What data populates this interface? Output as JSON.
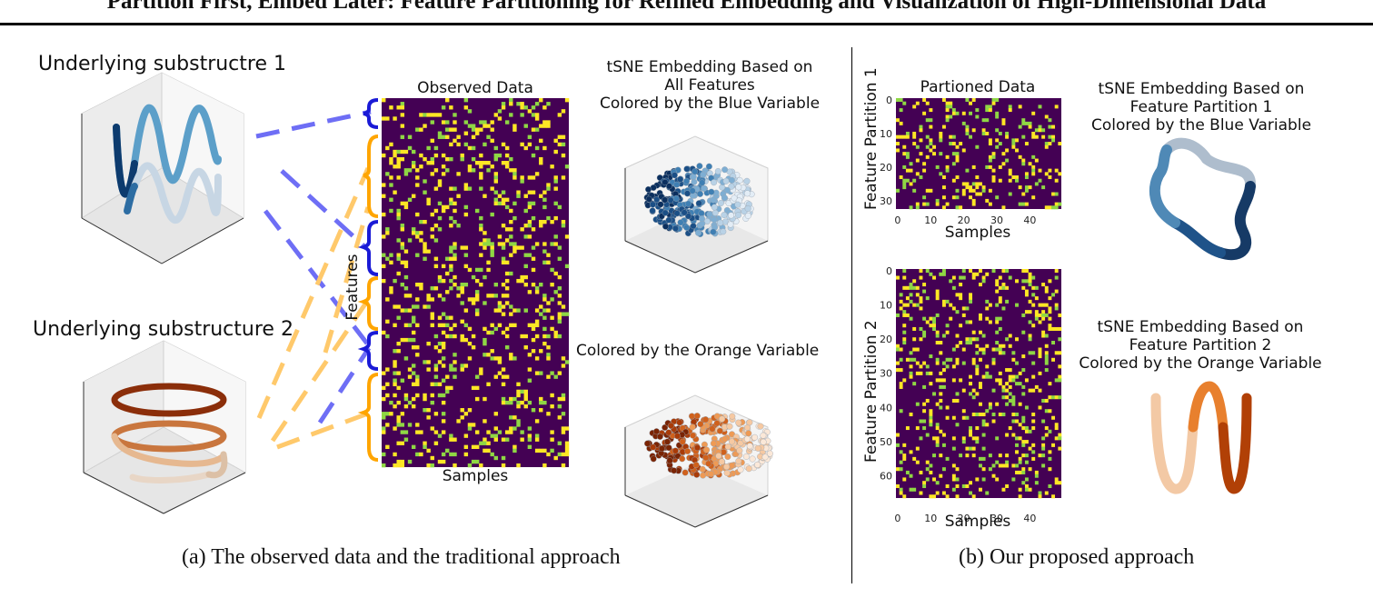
{
  "header": {
    "title": "Partition First, Embed Later: Feature Partitioning for Refined Embedding and Visualization of High-Dimensional Data"
  },
  "panel_a": {
    "sub1_title": "Underlying substructre 1",
    "sub2_title": "Underlying substructure 2",
    "observed_title": "Observed Data",
    "ylabel": "Features",
    "xlabel": "Samples",
    "tsne_title_l1": "tSNE Embedding Based on",
    "tsne_title_l2": "All Features",
    "tsne_title_l3": "Colored by the Blue Variable",
    "tsne_orange_title": "Colored by the Orange Variable",
    "caption": "(a) The observed data and the traditional approach"
  },
  "panel_b": {
    "partitioned_title": "Partioned Data",
    "ylabel1": "Feature Partition 1",
    "ylabel2": "Feature Partition 2",
    "xlabel1": "Samples",
    "xlabel2": "Samples",
    "xticks": [
      "0",
      "10",
      "20",
      "30",
      "40"
    ],
    "yticks1": [
      "0",
      "10",
      "20",
      "30"
    ],
    "yticks2": [
      "0",
      "10",
      "20",
      "30",
      "40",
      "50",
      "60"
    ],
    "tsne1_l1": "tSNE Embedding Based on",
    "tsne1_l2": "Feature Partition 1",
    "tsne1_l3": "Colored by the Blue Variable",
    "tsne2_l1": "tSNE Embedding Based on",
    "tsne2_l2": "Feature Partition 2",
    "tsne2_l3": "Colored by the Orange Variable",
    "caption": "(b) Our proposed approach"
  },
  "colors": {
    "heatmap_bg": "#440154",
    "heatmap_yellow": "#fde725",
    "heatmap_green": "#8fd744",
    "blue_brace": "#1a1ad6",
    "orange_brace": "#ffa500",
    "blue_dash": "#6e6ef5",
    "orange_dash": "#ffc96b"
  }
}
